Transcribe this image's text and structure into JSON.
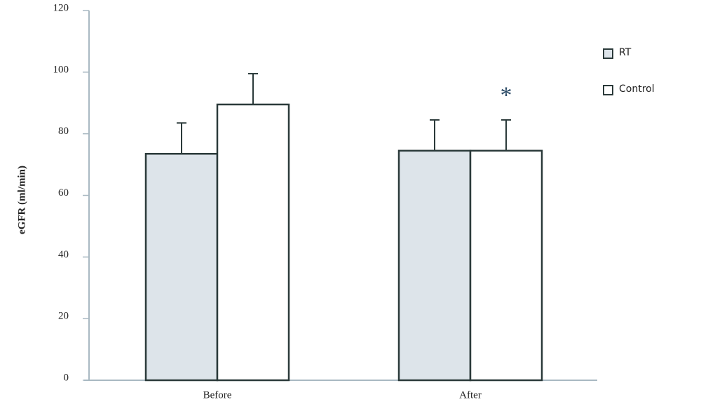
{
  "chart_data": {
    "type": "bar",
    "ylabel": "eGFR (ml/min)",
    "annotation": "*",
    "categories": [
      "Before",
      "After"
    ],
    "series": [
      {
        "name": "RT",
        "color": "#dde4ea",
        "values": [
          73.5,
          74.5
        ],
        "errors": [
          10,
          10
        ]
      },
      {
        "name": "Control",
        "color": "#ffffff",
        "values": [
          89.5,
          74.5
        ],
        "errors": [
          10,
          10
        ]
      }
    ],
    "ylim": [
      0,
      120
    ],
    "yticks": [
      0,
      20,
      40,
      60,
      80,
      100,
      120
    ],
    "grid": false,
    "legend": "top-right"
  }
}
